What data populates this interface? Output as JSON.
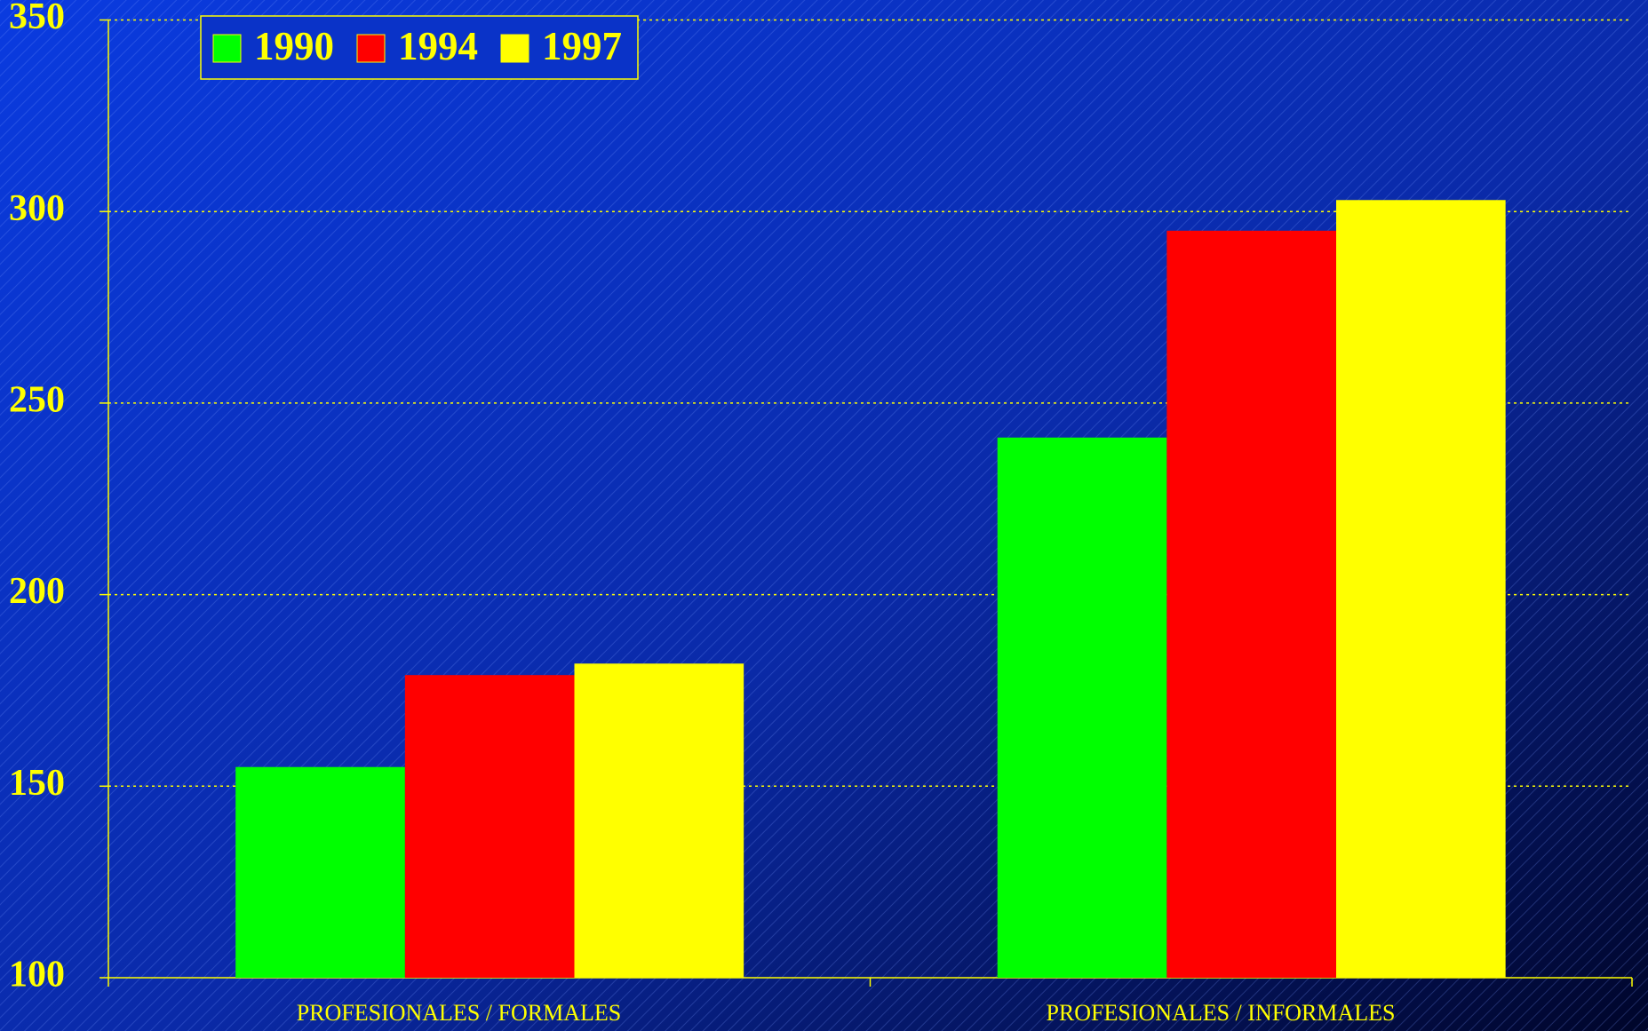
{
  "chart_data": {
    "type": "bar",
    "categories": [
      "PROFESIONALES / FORMALES",
      "PROFESIONALES / INFORMALES"
    ],
    "series": [
      {
        "name": "1990",
        "color": "#00ff00",
        "values": [
          155,
          241
        ]
      },
      {
        "name": "1994",
        "color": "#ff0000",
        "values": [
          179,
          295
        ]
      },
      {
        "name": "1997",
        "color": "#ffff00",
        "values": [
          182,
          303
        ]
      }
    ],
    "ylim": [
      100,
      350
    ],
    "yticks": [
      100,
      150,
      200,
      250,
      300,
      350
    ],
    "grid": true,
    "legend": "top-left"
  }
}
